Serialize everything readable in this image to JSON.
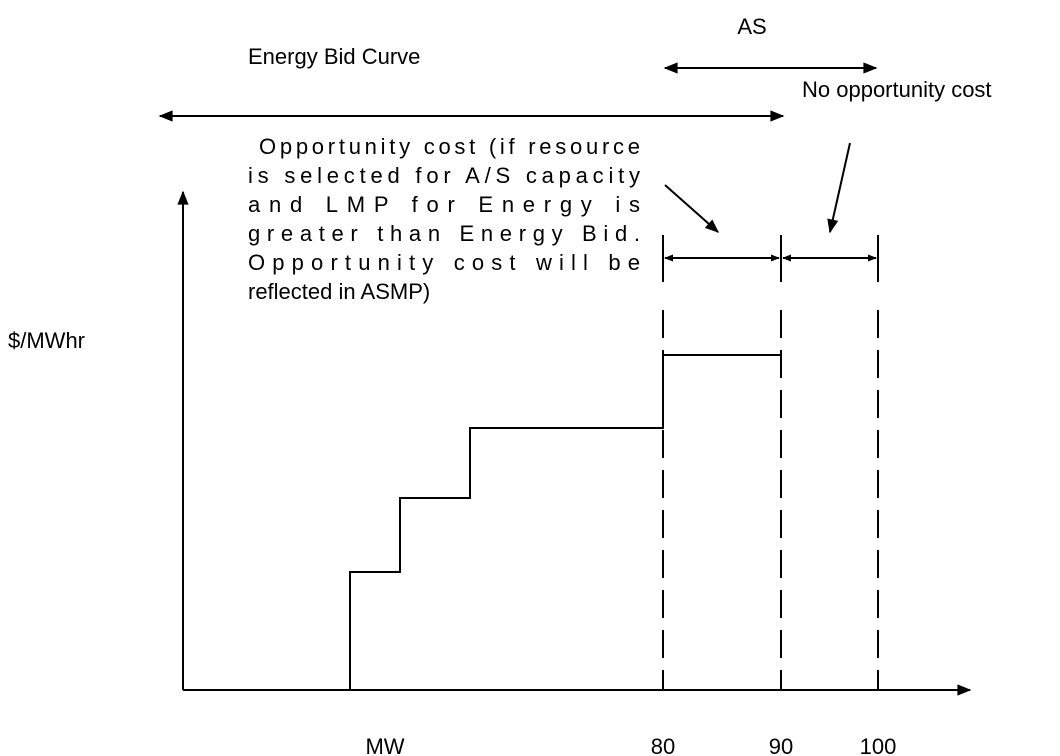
{
  "labels": {
    "as": "AS",
    "energy_bid_curve": "Energy Bid Curve",
    "no_opportunity_cost": "No opportunity cost",
    "y_axis": "$/MWhr",
    "x_axis": "MW",
    "x_ticks": [
      "80",
      "90",
      "100"
    ]
  },
  "note": {
    "lines": [
      "Opportunity cost (if resource",
      "is selected for A/S capacity",
      "and LMP for Energy is",
      "greater than Energy Bid.",
      "Opportunity cost will be",
      "reflected in ASMP)"
    ]
  }
}
